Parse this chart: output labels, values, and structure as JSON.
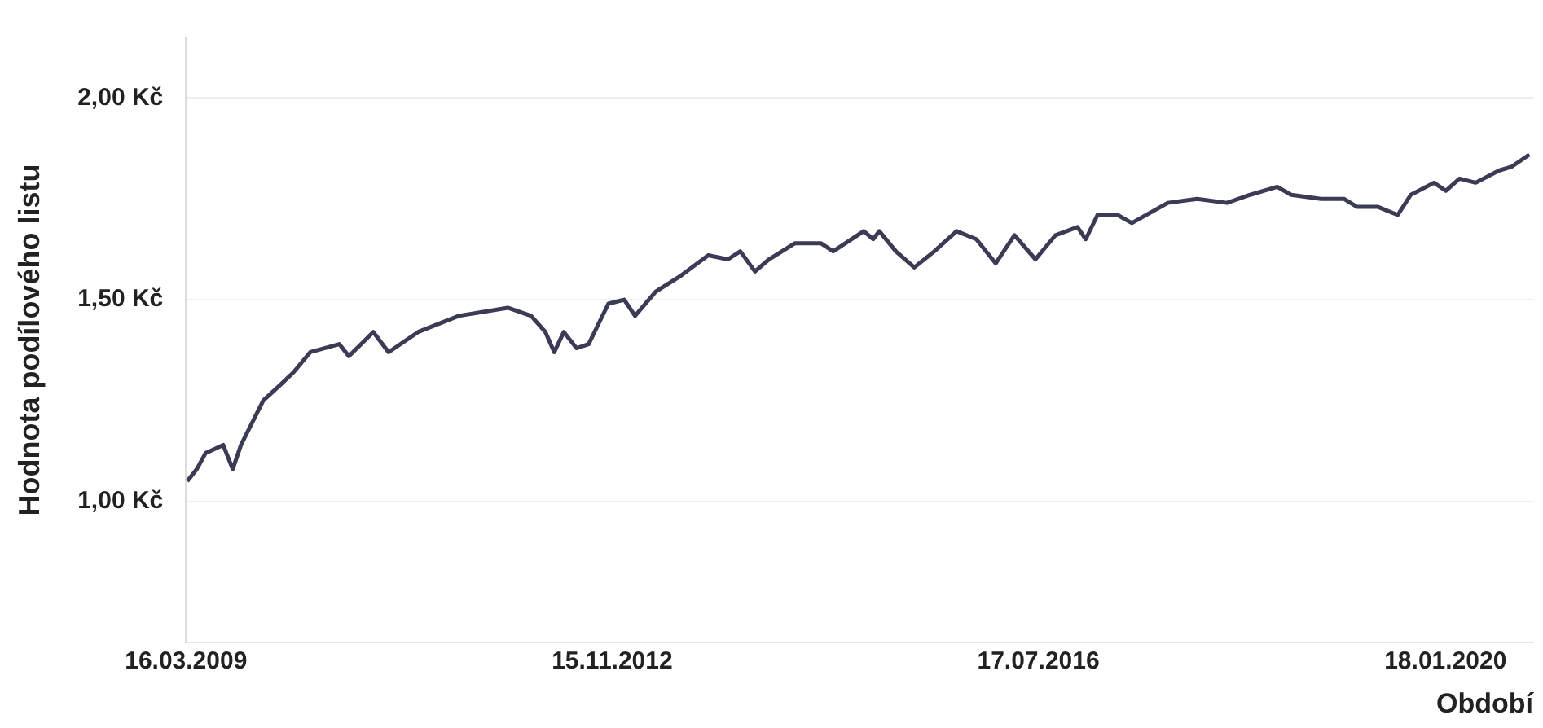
{
  "chart_data": {
    "type": "line",
    "xlabel": "Období",
    "ylabel": "Hodnota podílového listu",
    "x": [
      "2009-03-20",
      "2009-04-19",
      "2009-05-17",
      "2009-07-11",
      "2009-08-10",
      "2009-09-05",
      "2009-11-14",
      "2010-01-08",
      "2010-02-17",
      "2010-04-11",
      "2010-07-11",
      "2010-08-10",
      "2010-10-26",
      "2010-12-13",
      "2011-03-16",
      "2011-07-22",
      "2011-12-23",
      "2012-03-05",
      "2012-04-19",
      "2012-05-17",
      "2012-06-16",
      "2012-07-26",
      "2012-09-02",
      "2012-11-03",
      "2012-12-23",
      "2013-01-26",
      "2013-04-01",
      "2013-06-20",
      "2013-09-13",
      "2013-11-14",
      "2013-12-23",
      "2014-02-07",
      "2014-03-23",
      "2014-06-13",
      "2014-09-02",
      "2014-10-11",
      "2015-01-15",
      "2015-02-14",
      "2015-03-05",
      "2015-04-26",
      "2015-06-23",
      "2015-08-25",
      "2015-11-03",
      "2016-01-04",
      "2016-03-05",
      "2016-05-03",
      "2016-07-08",
      "2016-09-09",
      "2016-11-17",
      "2016-12-13",
      "2017-01-19",
      "2017-03-23",
      "2017-05-07",
      "2017-08-28",
      "2017-11-28",
      "2018-03-02",
      "2018-05-14",
      "2018-08-07",
      "2018-09-20",
      "2018-12-23",
      "2019-03-05",
      "2019-04-15",
      "2019-06-20",
      "2019-08-21",
      "2019-10-01",
      "2019-12-13",
      "2020-01-19",
      "2020-03-02",
      "2020-04-22",
      "2020-07-04",
      "2020-08-14",
      "2020-10-08"
    ],
    "series": [
      {
        "color": "#3b3b55",
        "values": [
          1.05,
          1.08,
          1.12,
          1.14,
          1.08,
          1.14,
          1.25,
          1.29,
          1.32,
          1.37,
          1.39,
          1.36,
          1.42,
          1.37,
          1.42,
          1.46,
          1.48,
          1.46,
          1.42,
          1.37,
          1.42,
          1.38,
          1.39,
          1.49,
          1.5,
          1.46,
          1.52,
          1.56,
          1.61,
          1.6,
          1.62,
          1.57,
          1.6,
          1.64,
          1.64,
          1.62,
          1.67,
          1.65,
          1.67,
          1.62,
          1.58,
          1.62,
          1.67,
          1.65,
          1.59,
          1.66,
          1.6,
          1.66,
          1.68,
          1.65,
          1.71,
          1.71,
          1.69,
          1.74,
          1.75,
          1.74,
          1.76,
          1.78,
          1.76,
          1.75,
          1.75,
          1.73,
          1.73,
          1.71,
          1.76,
          1.79,
          1.77,
          1.8,
          1.79,
          1.82,
          1.83,
          1.86
        ]
      }
    ],
    "xlim": [
      "2009-03-16",
      "2020-10-20"
    ],
    "xticks": [
      {
        "value": "2009-03-16",
        "label": "16.03.2009"
      },
      {
        "value": "2012-11-15",
        "label": "15.11.2012"
      },
      {
        "value": "2016-07-17",
        "label": "17.07.2016"
      },
      {
        "value": "2020-01-18",
        "label": "18.01.2020"
      }
    ],
    "ylim": [
      0.65,
      2.15
    ],
    "yticks": [
      {
        "value": 1,
        "label": "1,00 Kč"
      },
      {
        "value": 1.5,
        "label": "1,50 Kč"
      },
      {
        "value": 2,
        "label": "2,00 Kč"
      }
    ],
    "grid": "y",
    "legend": false
  }
}
